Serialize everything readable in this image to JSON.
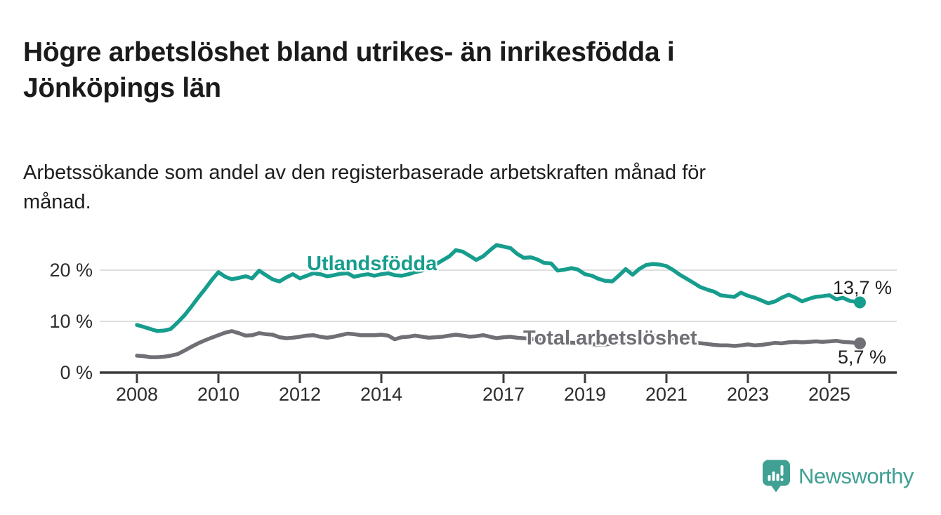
{
  "header": {
    "title": "Högre arbetslöshet bland utrikes- än inrikesfödda i\nJönköpings län",
    "subtitle": "Arbetssökande som andel av den registerbaserade arbetskraften månad för\nmånad."
  },
  "chart_data": {
    "type": "line",
    "unit": "%",
    "x_ticks": [
      2008,
      2010,
      2012,
      2014,
      2017,
      2019,
      2021,
      2023,
      2025
    ],
    "y_ticks": [
      0,
      10,
      20
    ],
    "y_tick_suffix": " %",
    "xlim": [
      2007.6,
      2026.1
    ],
    "ylim": [
      0,
      27.5
    ],
    "grid": true,
    "axis_color": "#3b3b3b",
    "grid_color": "#dedede",
    "series": [
      {
        "name": "Utlandsfödda",
        "color": "#169d8d",
        "end_label": "13,7 %",
        "end_value": 13.7,
        "points": [
          [
            2008.0,
            9.3
          ],
          [
            2008.17,
            8.9
          ],
          [
            2008.33,
            8.5
          ],
          [
            2008.5,
            8.1
          ],
          [
            2008.67,
            8.2
          ],
          [
            2008.83,
            8.5
          ],
          [
            2009.0,
            9.8
          ],
          [
            2009.17,
            11.2
          ],
          [
            2009.33,
            12.8
          ],
          [
            2009.5,
            14.6
          ],
          [
            2009.67,
            16.3
          ],
          [
            2009.83,
            18.0
          ],
          [
            2010.0,
            19.6
          ],
          [
            2010.17,
            18.7
          ],
          [
            2010.33,
            18.2
          ],
          [
            2010.5,
            18.5
          ],
          [
            2010.67,
            18.8
          ],
          [
            2010.83,
            18.4
          ],
          [
            2011.0,
            19.9
          ],
          [
            2011.17,
            19.0
          ],
          [
            2011.33,
            18.2
          ],
          [
            2011.5,
            17.8
          ],
          [
            2011.67,
            18.6
          ],
          [
            2011.83,
            19.2
          ],
          [
            2012.0,
            18.4
          ],
          [
            2012.17,
            18.9
          ],
          [
            2012.33,
            19.4
          ],
          [
            2012.5,
            19.2
          ],
          [
            2012.67,
            18.8
          ],
          [
            2012.83,
            19.0
          ],
          [
            2013.0,
            19.3
          ],
          [
            2013.17,
            19.4
          ],
          [
            2013.33,
            18.7
          ],
          [
            2013.5,
            19.0
          ],
          [
            2013.67,
            19.2
          ],
          [
            2013.83,
            18.9
          ],
          [
            2014.0,
            19.2
          ],
          [
            2014.17,
            19.4
          ],
          [
            2014.33,
            19.0
          ],
          [
            2014.5,
            18.9
          ],
          [
            2014.67,
            19.2
          ],
          [
            2014.83,
            19.6
          ],
          [
            2015.0,
            19.9
          ],
          [
            2015.17,
            20.4
          ],
          [
            2015.33,
            21.1
          ],
          [
            2015.5,
            21.9
          ],
          [
            2015.67,
            22.7
          ],
          [
            2015.83,
            23.9
          ],
          [
            2016.0,
            23.6
          ],
          [
            2016.17,
            22.8
          ],
          [
            2016.33,
            22.0
          ],
          [
            2016.5,
            22.7
          ],
          [
            2016.67,
            23.9
          ],
          [
            2016.83,
            24.9
          ],
          [
            2017.0,
            24.6
          ],
          [
            2017.17,
            24.3
          ],
          [
            2017.33,
            23.2
          ],
          [
            2017.5,
            22.4
          ],
          [
            2017.67,
            22.5
          ],
          [
            2017.83,
            22.1
          ],
          [
            2018.0,
            21.4
          ],
          [
            2018.17,
            21.3
          ],
          [
            2018.33,
            19.9
          ],
          [
            2018.5,
            20.1
          ],
          [
            2018.67,
            20.4
          ],
          [
            2018.83,
            20.1
          ],
          [
            2019.0,
            19.2
          ],
          [
            2019.17,
            18.9
          ],
          [
            2019.33,
            18.3
          ],
          [
            2019.5,
            17.9
          ],
          [
            2019.67,
            17.8
          ],
          [
            2019.83,
            18.9
          ],
          [
            2020.0,
            20.2
          ],
          [
            2020.17,
            19.1
          ],
          [
            2020.33,
            20.2
          ],
          [
            2020.5,
            21.0
          ],
          [
            2020.67,
            21.2
          ],
          [
            2020.83,
            21.1
          ],
          [
            2021.0,
            20.8
          ],
          [
            2021.17,
            20.0
          ],
          [
            2021.33,
            19.1
          ],
          [
            2021.5,
            18.3
          ],
          [
            2021.67,
            17.5
          ],
          [
            2021.83,
            16.7
          ],
          [
            2022.0,
            16.2
          ],
          [
            2022.17,
            15.8
          ],
          [
            2022.33,
            15.1
          ],
          [
            2022.5,
            14.9
          ],
          [
            2022.67,
            14.8
          ],
          [
            2022.83,
            15.6
          ],
          [
            2023.0,
            15.0
          ],
          [
            2023.17,
            14.6
          ],
          [
            2023.33,
            14.1
          ],
          [
            2023.5,
            13.5
          ],
          [
            2023.67,
            13.9
          ],
          [
            2023.83,
            14.6
          ],
          [
            2024.0,
            15.2
          ],
          [
            2024.17,
            14.6
          ],
          [
            2024.33,
            13.9
          ],
          [
            2024.5,
            14.4
          ],
          [
            2024.67,
            14.8
          ],
          [
            2024.83,
            14.9
          ],
          [
            2025.0,
            15.1
          ],
          [
            2025.17,
            14.3
          ],
          [
            2025.33,
            14.6
          ],
          [
            2025.5,
            14.0
          ],
          [
            2025.67,
            13.8
          ],
          [
            2025.75,
            13.7
          ]
        ]
      },
      {
        "name": "Total arbetslöshet",
        "color": "#6f6f75",
        "end_label": "5,7 %",
        "end_value": 5.7,
        "points": [
          [
            2008.0,
            3.3
          ],
          [
            2008.17,
            3.2
          ],
          [
            2008.33,
            3.0
          ],
          [
            2008.5,
            3.0
          ],
          [
            2008.67,
            3.1
          ],
          [
            2008.83,
            3.3
          ],
          [
            2009.0,
            3.6
          ],
          [
            2009.17,
            4.3
          ],
          [
            2009.33,
            5.0
          ],
          [
            2009.5,
            5.7
          ],
          [
            2009.67,
            6.3
          ],
          [
            2009.83,
            6.8
          ],
          [
            2010.0,
            7.3
          ],
          [
            2010.17,
            7.8
          ],
          [
            2010.33,
            8.1
          ],
          [
            2010.5,
            7.7
          ],
          [
            2010.67,
            7.2
          ],
          [
            2010.83,
            7.3
          ],
          [
            2011.0,
            7.7
          ],
          [
            2011.17,
            7.5
          ],
          [
            2011.33,
            7.4
          ],
          [
            2011.5,
            6.9
          ],
          [
            2011.67,
            6.7
          ],
          [
            2011.83,
            6.8
          ],
          [
            2012.0,
            7.0
          ],
          [
            2012.17,
            7.2
          ],
          [
            2012.33,
            7.3
          ],
          [
            2012.5,
            7.0
          ],
          [
            2012.67,
            6.8
          ],
          [
            2012.83,
            7.0
          ],
          [
            2013.0,
            7.3
          ],
          [
            2013.17,
            7.6
          ],
          [
            2013.33,
            7.5
          ],
          [
            2013.5,
            7.3
          ],
          [
            2013.67,
            7.3
          ],
          [
            2013.83,
            7.3
          ],
          [
            2014.0,
            7.4
          ],
          [
            2014.17,
            7.2
          ],
          [
            2014.33,
            6.5
          ],
          [
            2014.5,
            6.9
          ],
          [
            2014.67,
            7.0
          ],
          [
            2014.83,
            7.2
          ],
          [
            2015.0,
            7.0
          ],
          [
            2015.17,
            6.8
          ],
          [
            2015.33,
            6.9
          ],
          [
            2015.5,
            7.0
          ],
          [
            2015.67,
            7.2
          ],
          [
            2015.83,
            7.4
          ],
          [
            2016.0,
            7.2
          ],
          [
            2016.17,
            7.0
          ],
          [
            2016.33,
            7.1
          ],
          [
            2016.5,
            7.3
          ],
          [
            2016.67,
            7.0
          ],
          [
            2016.83,
            6.7
          ],
          [
            2017.0,
            6.9
          ],
          [
            2017.17,
            7.0
          ],
          [
            2017.33,
            6.8
          ],
          [
            2017.5,
            6.7
          ],
          [
            2017.67,
            6.6
          ],
          [
            2017.83,
            6.4
          ],
          [
            2018.0,
            6.3
          ],
          [
            2018.25,
            6.0
          ],
          [
            2018.5,
            5.9
          ],
          [
            2018.75,
            5.8
          ],
          [
            2019.0,
            5.7
          ],
          [
            2019.25,
            5.5
          ],
          [
            2019.5,
            5.5
          ],
          [
            2019.75,
            5.7
          ],
          [
            2020.0,
            6.0
          ],
          [
            2020.25,
            7.0
          ],
          [
            2020.5,
            7.3
          ],
          [
            2020.75,
            7.2
          ],
          [
            2021.0,
            7.0
          ],
          [
            2021.25,
            6.6
          ],
          [
            2021.5,
            6.2
          ],
          [
            2021.75,
            5.8
          ],
          [
            2022.0,
            5.6
          ],
          [
            2022.17,
            5.4
          ],
          [
            2022.33,
            5.3
          ],
          [
            2022.5,
            5.3
          ],
          [
            2022.67,
            5.2
          ],
          [
            2022.83,
            5.3
          ],
          [
            2023.0,
            5.5
          ],
          [
            2023.17,
            5.3
          ],
          [
            2023.33,
            5.4
          ],
          [
            2023.5,
            5.6
          ],
          [
            2023.67,
            5.8
          ],
          [
            2023.83,
            5.7
          ],
          [
            2024.0,
            5.9
          ],
          [
            2024.17,
            6.0
          ],
          [
            2024.33,
            5.9
          ],
          [
            2024.5,
            6.0
          ],
          [
            2024.67,
            6.1
          ],
          [
            2024.83,
            6.0
          ],
          [
            2025.0,
            6.1
          ],
          [
            2025.17,
            6.2
          ],
          [
            2025.33,
            6.0
          ],
          [
            2025.5,
            5.9
          ],
          [
            2025.67,
            5.8
          ],
          [
            2025.75,
            5.7
          ]
        ]
      }
    ]
  },
  "branding": {
    "logo_text": "Newsworthy",
    "logo_color": "#3fa093",
    "logo_icon": "bar-chart-speech-bubble"
  }
}
